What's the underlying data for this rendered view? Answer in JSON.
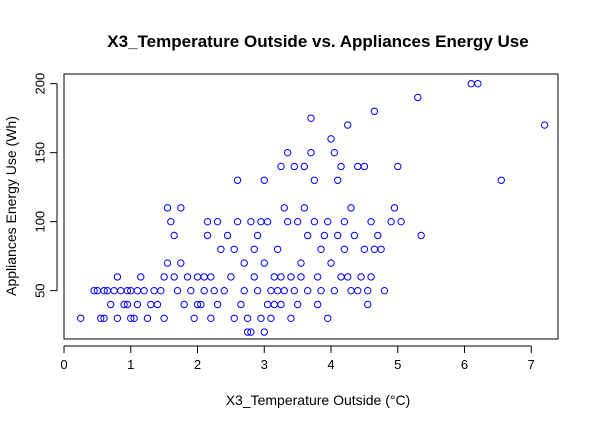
{
  "chart_data": {
    "type": "scatter",
    "title": "X3_Temperature Outside vs. Appliances Energy Use",
    "xlabel": "X3_Temperature Outside (°C)",
    "ylabel": "Appliances Energy Use (Wh)",
    "xlim": [
      0,
      7.4
    ],
    "ylim": [
      15,
      207
    ],
    "x_ticks": [
      0,
      1,
      2,
      3,
      4,
      5,
      6,
      7
    ],
    "y_ticks": [
      50,
      100,
      150,
      200
    ],
    "grid": false,
    "point_color": "#0000ff",
    "points": [
      [
        0.25,
        30
      ],
      [
        0.45,
        50
      ],
      [
        0.5,
        50
      ],
      [
        0.55,
        30
      ],
      [
        0.6,
        50
      ],
      [
        0.6,
        30
      ],
      [
        0.65,
        50
      ],
      [
        0.7,
        40
      ],
      [
        0.75,
        50
      ],
      [
        0.8,
        60
      ],
      [
        0.8,
        30
      ],
      [
        0.85,
        50
      ],
      [
        0.9,
        40
      ],
      [
        0.95,
        40
      ],
      [
        0.95,
        50
      ],
      [
        1.0,
        50
      ],
      [
        1.0,
        30
      ],
      [
        1.05,
        30
      ],
      [
        1.1,
        40
      ],
      [
        1.1,
        50
      ],
      [
        1.15,
        60
      ],
      [
        1.2,
        50
      ],
      [
        1.25,
        30
      ],
      [
        1.3,
        40
      ],
      [
        1.35,
        50
      ],
      [
        1.4,
        40
      ],
      [
        1.45,
        50
      ],
      [
        1.5,
        60
      ],
      [
        1.5,
        30
      ],
      [
        1.55,
        70
      ],
      [
        1.55,
        110
      ],
      [
        1.6,
        100
      ],
      [
        1.65,
        60
      ],
      [
        1.65,
        90
      ],
      [
        1.7,
        50
      ],
      [
        1.75,
        110
      ],
      [
        1.75,
        70
      ],
      [
        1.8,
        40
      ],
      [
        1.85,
        60
      ],
      [
        1.9,
        50
      ],
      [
        1.95,
        30
      ],
      [
        2.0,
        60
      ],
      [
        2.0,
        40
      ],
      [
        2.05,
        40
      ],
      [
        2.1,
        50
      ],
      [
        2.1,
        60
      ],
      [
        2.15,
        100
      ],
      [
        2.15,
        90
      ],
      [
        2.2,
        30
      ],
      [
        2.2,
        60
      ],
      [
        2.25,
        50
      ],
      [
        2.3,
        100
      ],
      [
        2.3,
        40
      ],
      [
        2.35,
        80
      ],
      [
        2.4,
        50
      ],
      [
        2.45,
        90
      ],
      [
        2.5,
        60
      ],
      [
        2.55,
        80
      ],
      [
        2.55,
        30
      ],
      [
        2.6,
        100
      ],
      [
        2.6,
        130
      ],
      [
        2.65,
        40
      ],
      [
        2.7,
        70
      ],
      [
        2.7,
        50
      ],
      [
        2.75,
        30
      ],
      [
        2.75,
        20
      ],
      [
        2.8,
        100
      ],
      [
        2.8,
        20
      ],
      [
        2.85,
        60
      ],
      [
        2.85,
        80
      ],
      [
        2.9,
        90
      ],
      [
        2.9,
        50
      ],
      [
        2.95,
        30
      ],
      [
        2.95,
        100
      ],
      [
        3.0,
        130
      ],
      [
        3.0,
        70
      ],
      [
        3.0,
        20
      ],
      [
        3.05,
        40
      ],
      [
        3.05,
        100
      ],
      [
        3.1,
        50
      ],
      [
        3.1,
        30
      ],
      [
        3.15,
        60
      ],
      [
        3.15,
        40
      ],
      [
        3.2,
        50
      ],
      [
        3.2,
        80
      ],
      [
        3.25,
        60
      ],
      [
        3.25,
        140
      ],
      [
        3.25,
        40
      ],
      [
        3.3,
        110
      ],
      [
        3.3,
        50
      ],
      [
        3.35,
        100
      ],
      [
        3.35,
        150
      ],
      [
        3.4,
        60
      ],
      [
        3.4,
        30
      ],
      [
        3.45,
        50
      ],
      [
        3.45,
        140
      ],
      [
        3.5,
        100
      ],
      [
        3.5,
        40
      ],
      [
        3.55,
        70
      ],
      [
        3.55,
        60
      ],
      [
        3.6,
        110
      ],
      [
        3.6,
        140
      ],
      [
        3.65,
        50
      ],
      [
        3.65,
        90
      ],
      [
        3.7,
        150
      ],
      [
        3.7,
        175
      ],
      [
        3.75,
        100
      ],
      [
        3.75,
        130
      ],
      [
        3.8,
        40
      ],
      [
        3.8,
        60
      ],
      [
        3.85,
        80
      ],
      [
        3.85,
        50
      ],
      [
        3.9,
        90
      ],
      [
        3.95,
        100
      ],
      [
        3.95,
        30
      ],
      [
        4.0,
        160
      ],
      [
        4.0,
        70
      ],
      [
        4.05,
        150
      ],
      [
        4.05,
        50
      ],
      [
        4.1,
        130
      ],
      [
        4.1,
        90
      ],
      [
        4.15,
        140
      ],
      [
        4.15,
        60
      ],
      [
        4.2,
        100
      ],
      [
        4.2,
        80
      ],
      [
        4.25,
        170
      ],
      [
        4.25,
        60
      ],
      [
        4.3,
        50
      ],
      [
        4.3,
        110
      ],
      [
        4.35,
        90
      ],
      [
        4.4,
        140
      ],
      [
        4.4,
        50
      ],
      [
        4.45,
        60
      ],
      [
        4.5,
        80
      ],
      [
        4.5,
        140
      ],
      [
        4.55,
        40
      ],
      [
        4.55,
        50
      ],
      [
        4.6,
        100
      ],
      [
        4.6,
        60
      ],
      [
        4.65,
        180
      ],
      [
        4.65,
        80
      ],
      [
        4.7,
        90
      ],
      [
        4.75,
        80
      ],
      [
        4.8,
        50
      ],
      [
        4.9,
        100
      ],
      [
        4.95,
        110
      ],
      [
        5.0,
        140
      ],
      [
        5.05,
        100
      ],
      [
        5.3,
        190
      ],
      [
        5.35,
        90
      ],
      [
        6.1,
        200
      ],
      [
        6.2,
        200
      ],
      [
        6.55,
        130
      ],
      [
        7.2,
        170
      ]
    ]
  }
}
